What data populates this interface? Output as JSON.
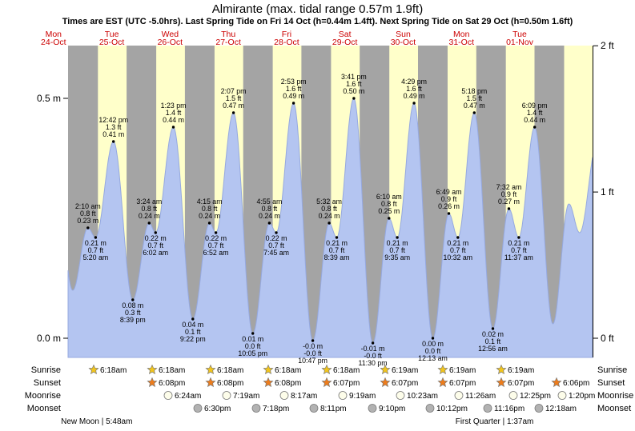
{
  "title": "Almirante (max. tidal range 0.57m 1.9ft)",
  "subtitle": "Times are EST (UTC -5.0hrs). Last Spring Tide on Fri 14 Oct (h=0.44m 1.4ft). Next Spring Tide on Sat 29 Oct (h=0.50m 1.6ft)",
  "day_headers": [
    {
      "dow": "Mon",
      "date": "24-Oct"
    },
    {
      "dow": "Tue",
      "date": "25-Oct"
    },
    {
      "dow": "Wed",
      "date": "26-Oct"
    },
    {
      "dow": "Thu",
      "date": "27-Oct"
    },
    {
      "dow": "Fri",
      "date": "28-Oct"
    },
    {
      "dow": "Sat",
      "date": "29-Oct"
    },
    {
      "dow": "Sun",
      "date": "30-Oct"
    },
    {
      "dow": "Mon",
      "date": "31-Oct"
    },
    {
      "dow": "Tue",
      "date": "01-Nov"
    }
  ],
  "axis": {
    "left": [
      {
        "label": "0.5 m",
        "m": 0.5
      },
      {
        "label": "0.0 m",
        "m": 0.0
      }
    ],
    "right": [
      {
        "label": "2 ft",
        "m": 0.6096
      },
      {
        "label": "1 ft",
        "m": 0.3048
      },
      {
        "label": "0 ft",
        "m": 0.0
      }
    ]
  },
  "chart_data": {
    "type": "area",
    "title": "Tide height curve for Almirante",
    "x_axis": "time (EST), hours measured from Mon 24 Oct 00:00; chart spans Mon 24 Oct 18:00 to Wed 02 Nov 18:00",
    "x_range_hours": [
      18,
      234
    ],
    "y_range_m": [
      -0.04,
      0.61
    ],
    "grid": false,
    "day_band_hours": {
      "sunrise": 6.3,
      "sunset": 18.12
    },
    "curve_anchors_t_v": [
      [
        12.0,
        0.4
      ],
      [
        19.92,
        0.1
      ],
      [
        26.17,
        0.23
      ],
      [
        29.33,
        0.21
      ],
      [
        36.7,
        0.41
      ],
      [
        44.65,
        0.08
      ],
      [
        51.4,
        0.24
      ],
      [
        54.03,
        0.22
      ],
      [
        61.38,
        0.44
      ],
      [
        69.37,
        0.04
      ],
      [
        76.25,
        0.24
      ],
      [
        78.87,
        0.22
      ],
      [
        86.12,
        0.47
      ],
      [
        94.08,
        0.01
      ],
      [
        100.92,
        0.24
      ],
      [
        103.75,
        0.22
      ],
      [
        110.88,
        0.49
      ],
      [
        118.78,
        -0.005
      ],
      [
        125.53,
        0.24
      ],
      [
        128.65,
        0.21
      ],
      [
        135.68,
        0.5
      ],
      [
        143.5,
        -0.01
      ],
      [
        150.17,
        0.25
      ],
      [
        153.58,
        0.21
      ],
      [
        160.48,
        0.49
      ],
      [
        168.22,
        0.0
      ],
      [
        174.82,
        0.26
      ],
      [
        178.53,
        0.21
      ],
      [
        185.3,
        0.47
      ],
      [
        192.93,
        0.02
      ],
      [
        199.53,
        0.27
      ],
      [
        203.62,
        0.21
      ],
      [
        210.15,
        0.44
      ],
      [
        217.67,
        0.03
      ],
      [
        224.25,
        0.28
      ],
      [
        228.67,
        0.22
      ],
      [
        236.0,
        0.41
      ]
    ],
    "events": [
      {
        "t": 26.17,
        "v": 0.23,
        "side": "above",
        "lines": [
          "2:10 am",
          "0.8 ft",
          "0.23 m"
        ]
      },
      {
        "t": 29.33,
        "v": 0.21,
        "side": "below",
        "lines": [
          "0.21 m",
          "0.7 ft",
          "5:20 am"
        ]
      },
      {
        "t": 36.7,
        "v": 0.41,
        "side": "above",
        "lines": [
          "12:42 pm",
          "1.3 ft",
          "0.41 m"
        ]
      },
      {
        "t": 44.65,
        "v": 0.08,
        "side": "below",
        "lines": [
          "0.08 m",
          "0.3 ft",
          "8:39 pm"
        ]
      },
      {
        "t": 51.4,
        "v": 0.24,
        "side": "above",
        "lines": [
          "3:24 am",
          "0.8 ft",
          "0.24 m"
        ]
      },
      {
        "t": 54.03,
        "v": 0.22,
        "side": "below",
        "lines": [
          "0.22 m",
          "0.7 ft",
          "6:02 am"
        ]
      },
      {
        "t": 61.38,
        "v": 0.44,
        "side": "above",
        "lines": [
          "1:23 pm",
          "1.4 ft",
          "0.44 m"
        ]
      },
      {
        "t": 69.37,
        "v": 0.04,
        "side": "below",
        "lines": [
          "0.04 m",
          "0.1 ft",
          "9:22 pm"
        ]
      },
      {
        "t": 76.25,
        "v": 0.24,
        "side": "above",
        "lines": [
          "4:15 am",
          "0.8 ft",
          "0.24 m"
        ]
      },
      {
        "t": 78.87,
        "v": 0.22,
        "side": "below",
        "lines": [
          "0.22 m",
          "0.7 ft",
          "6:52 am"
        ]
      },
      {
        "t": 86.12,
        "v": 0.47,
        "side": "above",
        "lines": [
          "2:07 pm",
          "1.5 ft",
          "0.47 m"
        ]
      },
      {
        "t": 94.08,
        "v": 0.01,
        "side": "below",
        "lines": [
          "0.01 m",
          "0.0 ft",
          "10:05 pm"
        ]
      },
      {
        "t": 100.92,
        "v": 0.24,
        "side": "above",
        "lines": [
          "4:55 am",
          "0.8 ft",
          "0.24 m"
        ]
      },
      {
        "t": 103.75,
        "v": 0.22,
        "side": "below",
        "lines": [
          "0.22 m",
          "0.7 ft",
          "7:45 am"
        ]
      },
      {
        "t": 110.88,
        "v": 0.49,
        "side": "above",
        "lines": [
          "2:53 pm",
          "1.6 ft",
          "0.49 m"
        ]
      },
      {
        "t": 118.78,
        "v": -0.005,
        "side": "below",
        "lines": [
          "-0.0 m",
          "-0.0 ft",
          "10:47 pm"
        ]
      },
      {
        "t": 125.53,
        "v": 0.24,
        "side": "above",
        "lines": [
          "5:32 am",
          "0.8 ft",
          "0.24 m"
        ]
      },
      {
        "t": 128.65,
        "v": 0.21,
        "side": "below",
        "lines": [
          "0.21 m",
          "0.7 ft",
          "8:39 am"
        ]
      },
      {
        "t": 135.68,
        "v": 0.5,
        "side": "above",
        "lines": [
          "3:41 pm",
          "1.6 ft",
          "0.50 m"
        ]
      },
      {
        "t": 143.5,
        "v": -0.01,
        "side": "below",
        "lines": [
          "-0.01 m",
          "-0.0 ft",
          "11:30 pm"
        ]
      },
      {
        "t": 150.17,
        "v": 0.25,
        "side": "above",
        "lines": [
          "6:10 am",
          "0.8 ft",
          "0.25 m"
        ]
      },
      {
        "t": 153.58,
        "v": 0.21,
        "side": "below",
        "lines": [
          "0.21 m",
          "0.7 ft",
          "9:35 am"
        ]
      },
      {
        "t": 160.48,
        "v": 0.49,
        "side": "above",
        "lines": [
          "4:29 pm",
          "1.6 ft",
          "0.49 m"
        ]
      },
      {
        "t": 168.22,
        "v": 0.0,
        "side": "below",
        "lines": [
          "0.00 m",
          "0.0 ft",
          "12:13 am"
        ]
      },
      {
        "t": 174.82,
        "v": 0.26,
        "side": "above",
        "lines": [
          "6:49 am",
          "0.9 ft",
          "0.26 m"
        ]
      },
      {
        "t": 178.53,
        "v": 0.21,
        "side": "below",
        "lines": [
          "0.21 m",
          "0.7 ft",
          "10:32 am"
        ]
      },
      {
        "t": 185.3,
        "v": 0.47,
        "side": "above",
        "lines": [
          "5:18 pm",
          "1.5 ft",
          "0.47 m"
        ]
      },
      {
        "t": 192.93,
        "v": 0.02,
        "side": "below",
        "lines": [
          "0.02 m",
          "0.1 ft",
          "12:56 am"
        ]
      },
      {
        "t": 199.53,
        "v": 0.27,
        "side": "above",
        "lines": [
          "7:32 am",
          "0.9 ft",
          "0.27 m"
        ]
      },
      {
        "t": 203.62,
        "v": 0.21,
        "side": "below",
        "lines": [
          "0.21 m",
          "0.7 ft",
          "11:37 am"
        ]
      },
      {
        "t": 210.15,
        "v": 0.44,
        "side": "above",
        "lines": [
          "6:09 pm",
          "1.4 ft",
          "0.44 m"
        ]
      }
    ]
  },
  "almanac": {
    "left_labels": [
      "Sunrise",
      "Sunset",
      "Moonrise",
      "Moonset"
    ],
    "right_labels": [
      "Sunrise",
      "Sunset",
      "Moonrise",
      "Moonset"
    ],
    "sunrise": [
      "6:18am",
      "6:18am",
      "6:18am",
      "6:18am",
      "6:18am",
      "6:19am",
      "6:19am",
      "6:19am"
    ],
    "sunset": [
      "6:08pm",
      "6:08pm",
      "6:08pm",
      "6:07pm",
      "6:07pm",
      "6:07pm",
      "6:07pm",
      "6:06pm"
    ],
    "moonrise": [
      "6:24am",
      "7:19am",
      "8:17am",
      "9:19am",
      "10:23am",
      "11:26am",
      "12:25pm",
      "1:20pm"
    ],
    "moonset": [
      "6:30pm",
      "7:18pm",
      "8:11pm",
      "9:10pm",
      "10:12pm",
      "11:16pm",
      "12:18am"
    ],
    "phases": [
      {
        "name": "New Moon",
        "time": "5:48am",
        "t": 29.8
      },
      {
        "name": "First Quarter",
        "time": "1:37am",
        "t": 193.62
      }
    ]
  },
  "colors": {
    "night_band": "#a4a4a4",
    "day_band": "#ffffca",
    "tide_fill": "#b4c5f1",
    "tide_stroke": "#96a9e0",
    "date_text": "#cc0000",
    "text": "#000000",
    "sunrise_icon": "#f2c51c",
    "sunset_icon": "#ee7c1b",
    "moonrise_icon": "#fdfdea",
    "moonset_icon": "#b2b2b2",
    "icon_stroke": "#7a7a7a"
  }
}
